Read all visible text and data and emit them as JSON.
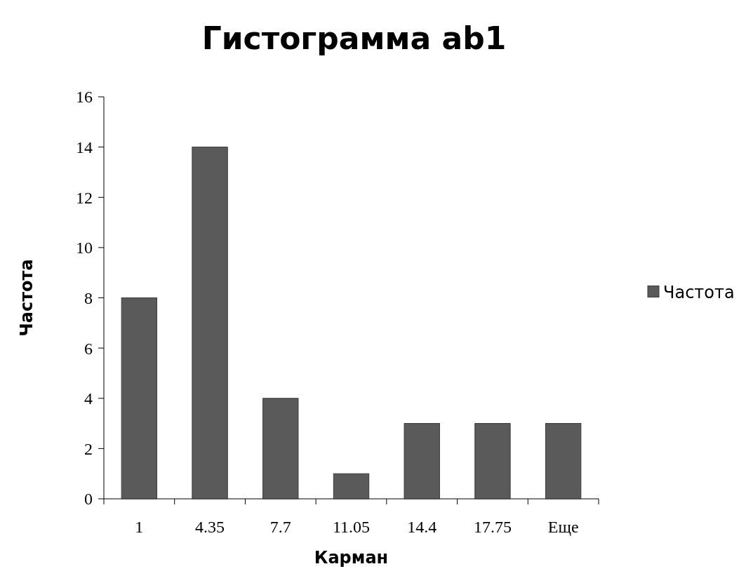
{
  "chart_data": {
    "type": "bar",
    "title": "Гистограмма ab1",
    "xlabel": "Карман",
    "ylabel": "Частота",
    "categories": [
      "1",
      "4.35",
      "7.7",
      "11.05",
      "14.4",
      "17.75",
      "Еще"
    ],
    "series": [
      {
        "name": "Частота",
        "color": "#5a5a5a",
        "values": [
          8,
          14,
          4,
          1,
          3,
          3,
          3
        ]
      }
    ],
    "ylim": [
      0,
      16
    ],
    "yticks": [
      0,
      2,
      4,
      6,
      8,
      10,
      12,
      14,
      16
    ],
    "grid": false,
    "legend": "right"
  }
}
